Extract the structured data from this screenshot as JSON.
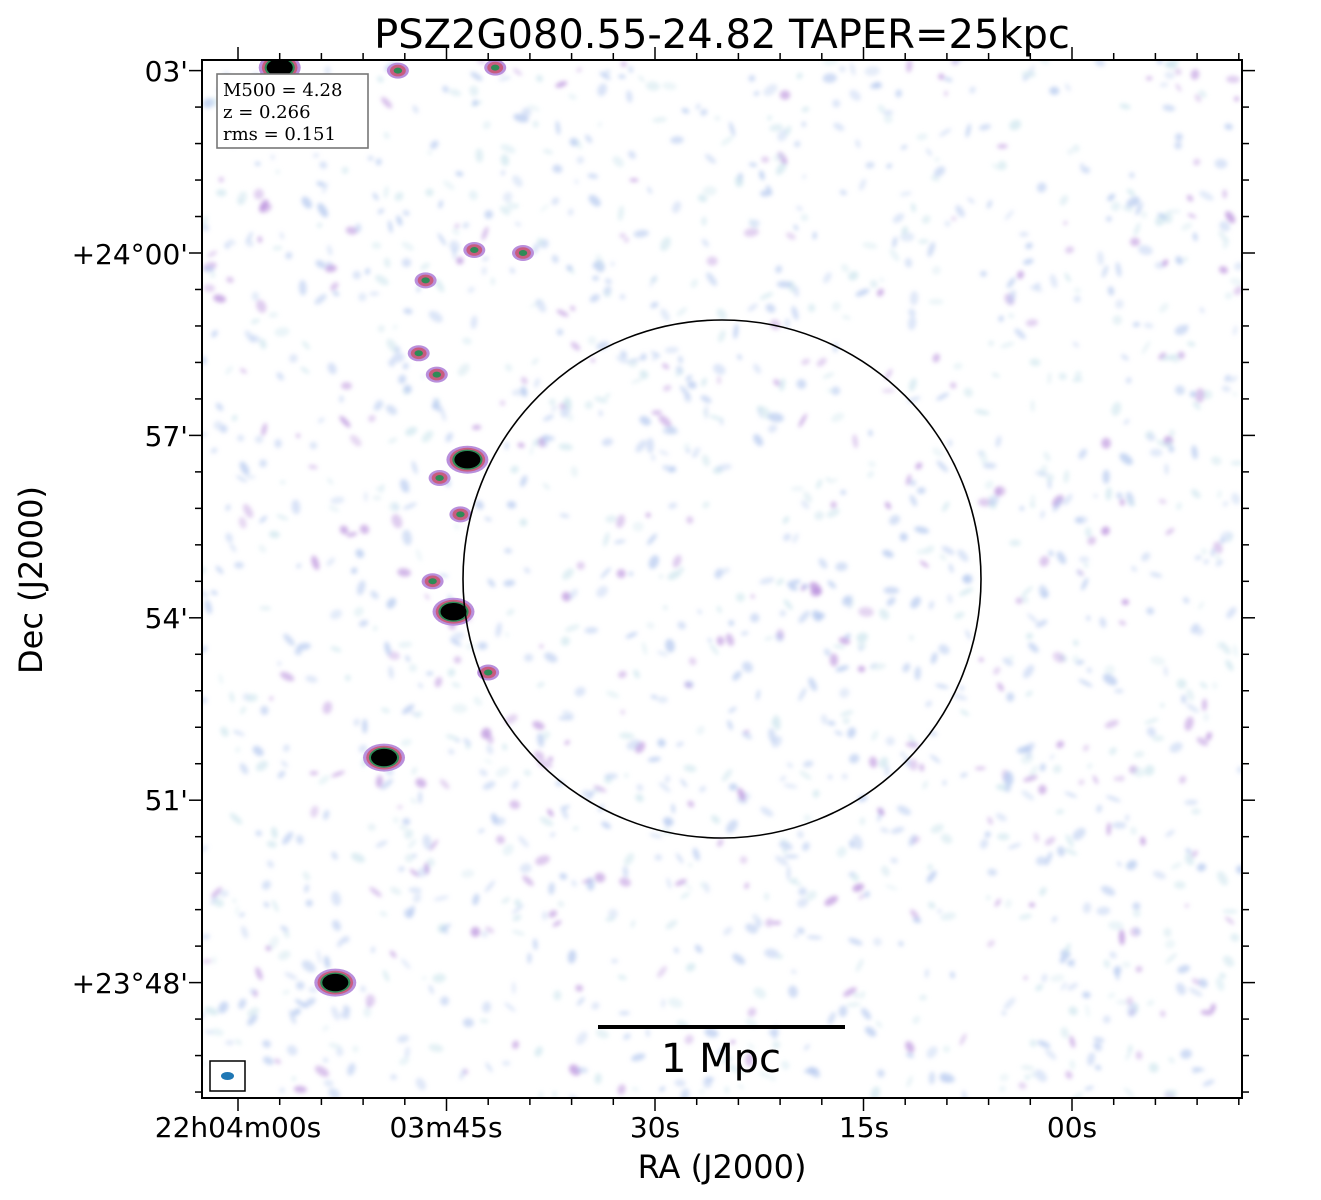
{
  "chart_data": {
    "type": "image",
    "title": "PSZ2G080.55-24.82 TAPER=25kpc",
    "xlabel": "RA (J2000)",
    "ylabel": "Dec (J2000)",
    "x_ticks": [
      "22h04m00s",
      "03m45s",
      "30s",
      "15s",
      "00s"
    ],
    "y_ticks": [
      "03'",
      "+24°00'",
      "57'",
      "54'",
      "51'",
      "+23°48'"
    ],
    "info_box": [
      "M500 = 4.28",
      "z = 0.266",
      "rms = 0.151"
    ],
    "scale_bar_label": "1 Mpc",
    "colormap": [
      "#ffffff",
      "#cfe6ee",
      "#b4c8ef",
      "#b98fdc",
      "#c85c7f",
      "#2e8b57",
      "#000000"
    ],
    "circle_color": "#000000",
    "beam_color": "#1f77b4",
    "sources": [
      {
        "ra_s": 237.0,
        "dec": 3.05,
        "peak": 0.9
      },
      {
        "ra_s": 223.0,
        "dec": 0.05,
        "peak": 0.55
      },
      {
        "ra_s": 223.5,
        "dec": -3.4,
        "peak": 0.9
      },
      {
        "ra_s": 224.5,
        "dec": -5.9,
        "peak": 1.0
      },
      {
        "ra_s": 229.5,
        "dec": -8.3,
        "peak": 1.0
      },
      {
        "ra_s": 233.0,
        "dec": -12.0,
        "peak": 1.0
      },
      {
        "ra_s": 219.5,
        "dec": 0.0,
        "peak": 0.6
      },
      {
        "ra_s": 226.5,
        "dec": -0.45,
        "peak": 0.6
      },
      {
        "ra_s": 225.7,
        "dec": -2.0,
        "peak": 0.55
      },
      {
        "ra_s": 225.5,
        "dec": -3.7,
        "peak": 0.55
      },
      {
        "ra_s": 224.0,
        "dec": -4.3,
        "peak": 0.55
      },
      {
        "ra_s": 226.0,
        "dec": -5.4,
        "peak": 0.55
      },
      {
        "ra_s": 221.5,
        "dec": 3.05,
        "peak": 0.55
      },
      {
        "ra_s": 227.0,
        "dec": -1.65,
        "peak": 0.45
      },
      {
        "ra_s": 222.0,
        "dec": -6.9,
        "peak": 0.45
      },
      {
        "ra_s": 228.5,
        "dec": 3.0,
        "peak": 0.5
      }
    ]
  },
  "info": {
    "line1": "M500 = 4.28",
    "line2": "z = 0.266",
    "line3": "rms = 0.151"
  }
}
